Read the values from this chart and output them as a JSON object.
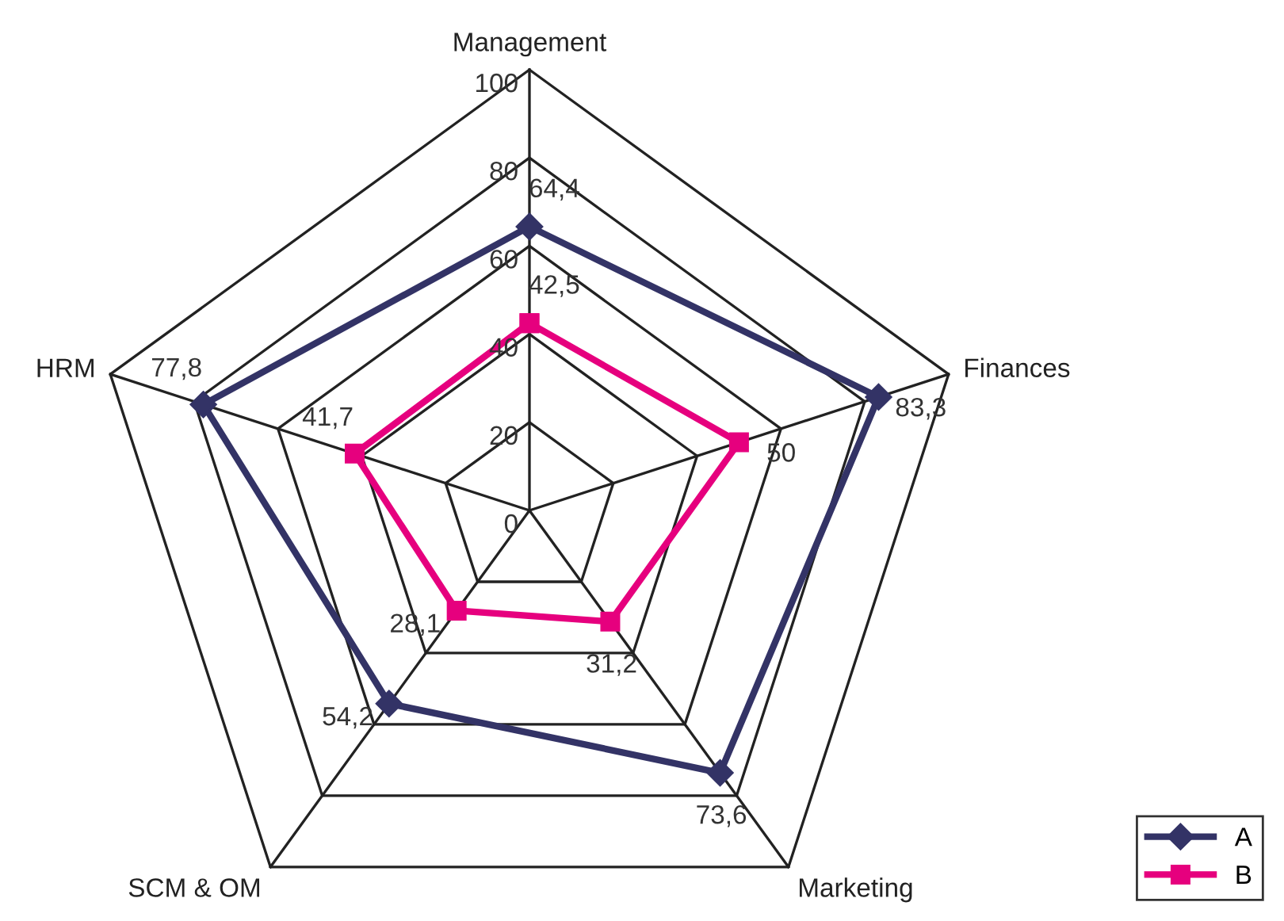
{
  "chart_data": {
    "type": "radar",
    "categories": [
      "Management",
      "Finances",
      "Marketing",
      "SCM & OM",
      "HRM"
    ],
    "ylim": [
      0,
      100
    ],
    "yticks": [
      0,
      20,
      40,
      60,
      80,
      100
    ],
    "legend": "bottom right",
    "grid": true,
    "series": [
      {
        "name": "A",
        "color": "#333366",
        "marker": "diamond",
        "values": [
          64.4,
          83.3,
          73.6,
          54.2,
          77.8
        ],
        "value_labels": [
          "64,4",
          "83,3",
          "73,6",
          "54,2",
          "77,8"
        ]
      },
      {
        "name": "B",
        "color": "#e6007e",
        "marker": "square",
        "values": [
          42.5,
          50,
          31.2,
          28.1,
          41.7
        ],
        "value_labels": [
          "42,5",
          "50",
          "31,2",
          "28,1",
          "41,7"
        ]
      }
    ]
  }
}
